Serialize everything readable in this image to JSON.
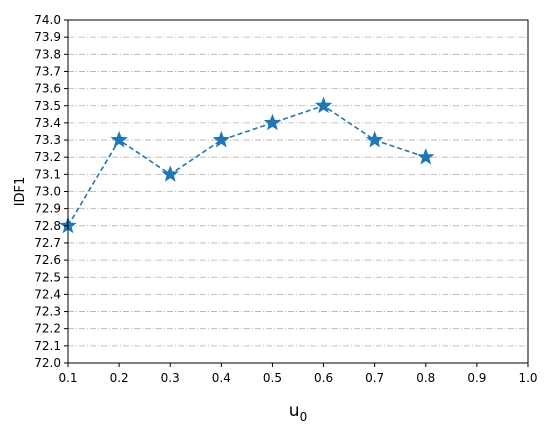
{
  "chart_data": {
    "type": "line",
    "title": "",
    "xlabel_main": "u",
    "xlabel_sub": "0",
    "ylabel": "IDF1",
    "xlim": [
      0.1,
      1.0
    ],
    "ylim": [
      72.0,
      74.0
    ],
    "x_ticks": [
      "0.1",
      "0.2",
      "0.3",
      "0.4",
      "0.5",
      "0.6",
      "0.7",
      "0.8",
      "0.9",
      "1.0"
    ],
    "y_ticks": [
      "72.0",
      "72.1",
      "72.2",
      "72.3",
      "72.4",
      "72.5",
      "72.6",
      "72.7",
      "72.8",
      "72.9",
      "73.0",
      "73.1",
      "73.2",
      "73.3",
      "73.4",
      "73.5",
      "73.6",
      "73.7",
      "73.8",
      "73.9",
      "74.0"
    ],
    "grid": "horizontal dash-dot",
    "series": [
      {
        "x": [
          0.1,
          0.2,
          0.3,
          0.4,
          0.5,
          0.6,
          0.7,
          0.8
        ],
        "values": [
          72.8,
          73.3,
          73.1,
          73.3,
          73.4,
          73.5,
          73.3,
          73.2
        ],
        "color": "#1f77b4",
        "line_style": "dashed",
        "marker": "star"
      }
    ]
  }
}
